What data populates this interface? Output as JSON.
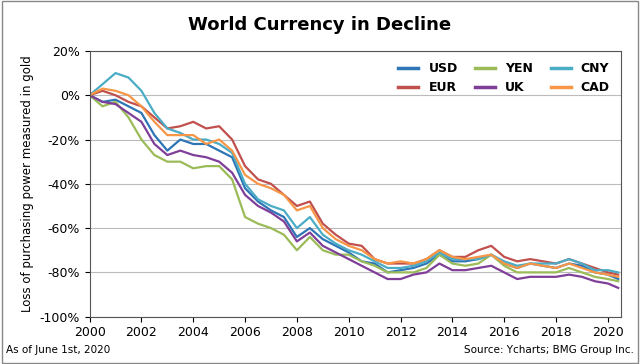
{
  "chart_data": {
    "type": "line",
    "title": "World Currency in Decline",
    "y_label": "Loss of purchasing power measured in gold",
    "annotations": [
      "As of June 1st, 2020",
      "Source: Ycharts; BMG Group Inc."
    ],
    "x": [
      2000,
      2000.5,
      2001,
      2001.5,
      2002,
      2002.5,
      2003,
      2003.5,
      2004,
      2004.5,
      2005,
      2005.5,
      2006,
      2006.5,
      2007,
      2007.5,
      2008,
      2008.5,
      2009,
      2009.5,
      2010,
      2010.5,
      2011,
      2011.5,
      2012,
      2012.5,
      2013,
      2013.5,
      2014,
      2014.5,
      2015,
      2015.5,
      2016,
      2016.5,
      2017,
      2017.5,
      2018,
      2018.5,
      2019,
      2019.5,
      2020,
      2020.4
    ],
    "series": [
      {
        "name": "USD",
        "color": "#2e75b6",
        "values": [
          0,
          -3,
          -2,
          -5,
          -8,
          -18,
          -25,
          -20,
          -22,
          -22,
          -25,
          -28,
          -42,
          -48,
          -52,
          -55,
          -64,
          -60,
          -65,
          -68,
          -71,
          -75,
          -76,
          -80,
          -79,
          -78,
          -76,
          -72,
          -75,
          -75,
          -74,
          -72,
          -76,
          -78,
          -76,
          -77,
          -78,
          -76,
          -77,
          -80,
          -81,
          -83
        ]
      },
      {
        "name": "EUR",
        "color": "#c0504d",
        "values": [
          0,
          2,
          0,
          -3,
          -5,
          -10,
          -15,
          -14,
          -12,
          -15,
          -14,
          -20,
          -32,
          -38,
          -40,
          -45,
          -50,
          -48,
          -58,
          -63,
          -67,
          -68,
          -74,
          -76,
          -76,
          -76,
          -74,
          -70,
          -73,
          -73,
          -70,
          -68,
          -73,
          -75,
          -74,
          -75,
          -76,
          -74,
          -76,
          -78,
          -80,
          -81
        ]
      },
      {
        "name": "YEN",
        "color": "#9bbb59",
        "values": [
          0,
          -5,
          -3,
          -10,
          -20,
          -27,
          -30,
          -30,
          -33,
          -32,
          -32,
          -38,
          -55,
          -58,
          -60,
          -63,
          -70,
          -64,
          -70,
          -72,
          -72,
          -75,
          -77,
          -80,
          -80,
          -80,
          -78,
          -72,
          -76,
          -77,
          -76,
          -72,
          -77,
          -80,
          -80,
          -80,
          -80,
          -78,
          -80,
          -82,
          -83,
          -84
        ]
      },
      {
        "name": "UK",
        "color": "#7f3f98",
        "values": [
          0,
          -3,
          -4,
          -8,
          -12,
          -22,
          -27,
          -25,
          -27,
          -28,
          -30,
          -35,
          -45,
          -50,
          -53,
          -57,
          -66,
          -62,
          -68,
          -71,
          -74,
          -77,
          -80,
          -83,
          -83,
          -81,
          -80,
          -76,
          -79,
          -79,
          -78,
          -77,
          -80,
          -83,
          -82,
          -82,
          -82,
          -81,
          -82,
          -84,
          -85,
          -87
        ]
      },
      {
        "name": "CNY",
        "color": "#4bacc6",
        "values": [
          0,
          5,
          10,
          8,
          2,
          -8,
          -15,
          -17,
          -20,
          -20,
          -22,
          -26,
          -40,
          -47,
          -50,
          -52,
          -60,
          -55,
          -63,
          -67,
          -70,
          -72,
          -75,
          -78,
          -78,
          -77,
          -75,
          -71,
          -74,
          -74,
          -74,
          -72,
          -75,
          -77,
          -76,
          -76,
          -76,
          -74,
          -76,
          -79,
          -79,
          -80
        ]
      },
      {
        "name": "CAD",
        "color": "#f79646",
        "values": [
          0,
          3,
          2,
          0,
          -5,
          -12,
          -18,
          -18,
          -18,
          -22,
          -20,
          -25,
          -36,
          -40,
          -42,
          -45,
          -52,
          -50,
          -60,
          -65,
          -68,
          -70,
          -74,
          -76,
          -75,
          -76,
          -74,
          -70,
          -73,
          -74,
          -73,
          -72,
          -76,
          -78,
          -76,
          -77,
          -78,
          -76,
          -78,
          -80,
          -81,
          -82
        ]
      }
    ],
    "xlim": [
      2000,
      2020.5
    ],
    "xticks": [
      2000,
      2002,
      2004,
      2006,
      2008,
      2010,
      2012,
      2014,
      2016,
      2018,
      2020
    ],
    "ylim": [
      -100,
      20
    ],
    "yticks": [
      {
        "value": -100,
        "label": "-100%"
      },
      {
        "value": -80,
        "label": "-80%"
      },
      {
        "value": -60,
        "label": "-60%"
      },
      {
        "value": -40,
        "label": "-40%"
      },
      {
        "value": -20,
        "label": "-20%"
      },
      {
        "value": 0,
        "label": "0%"
      },
      {
        "value": 20,
        "label": "20%"
      }
    ],
    "grid": true,
    "legend": "upper right"
  }
}
